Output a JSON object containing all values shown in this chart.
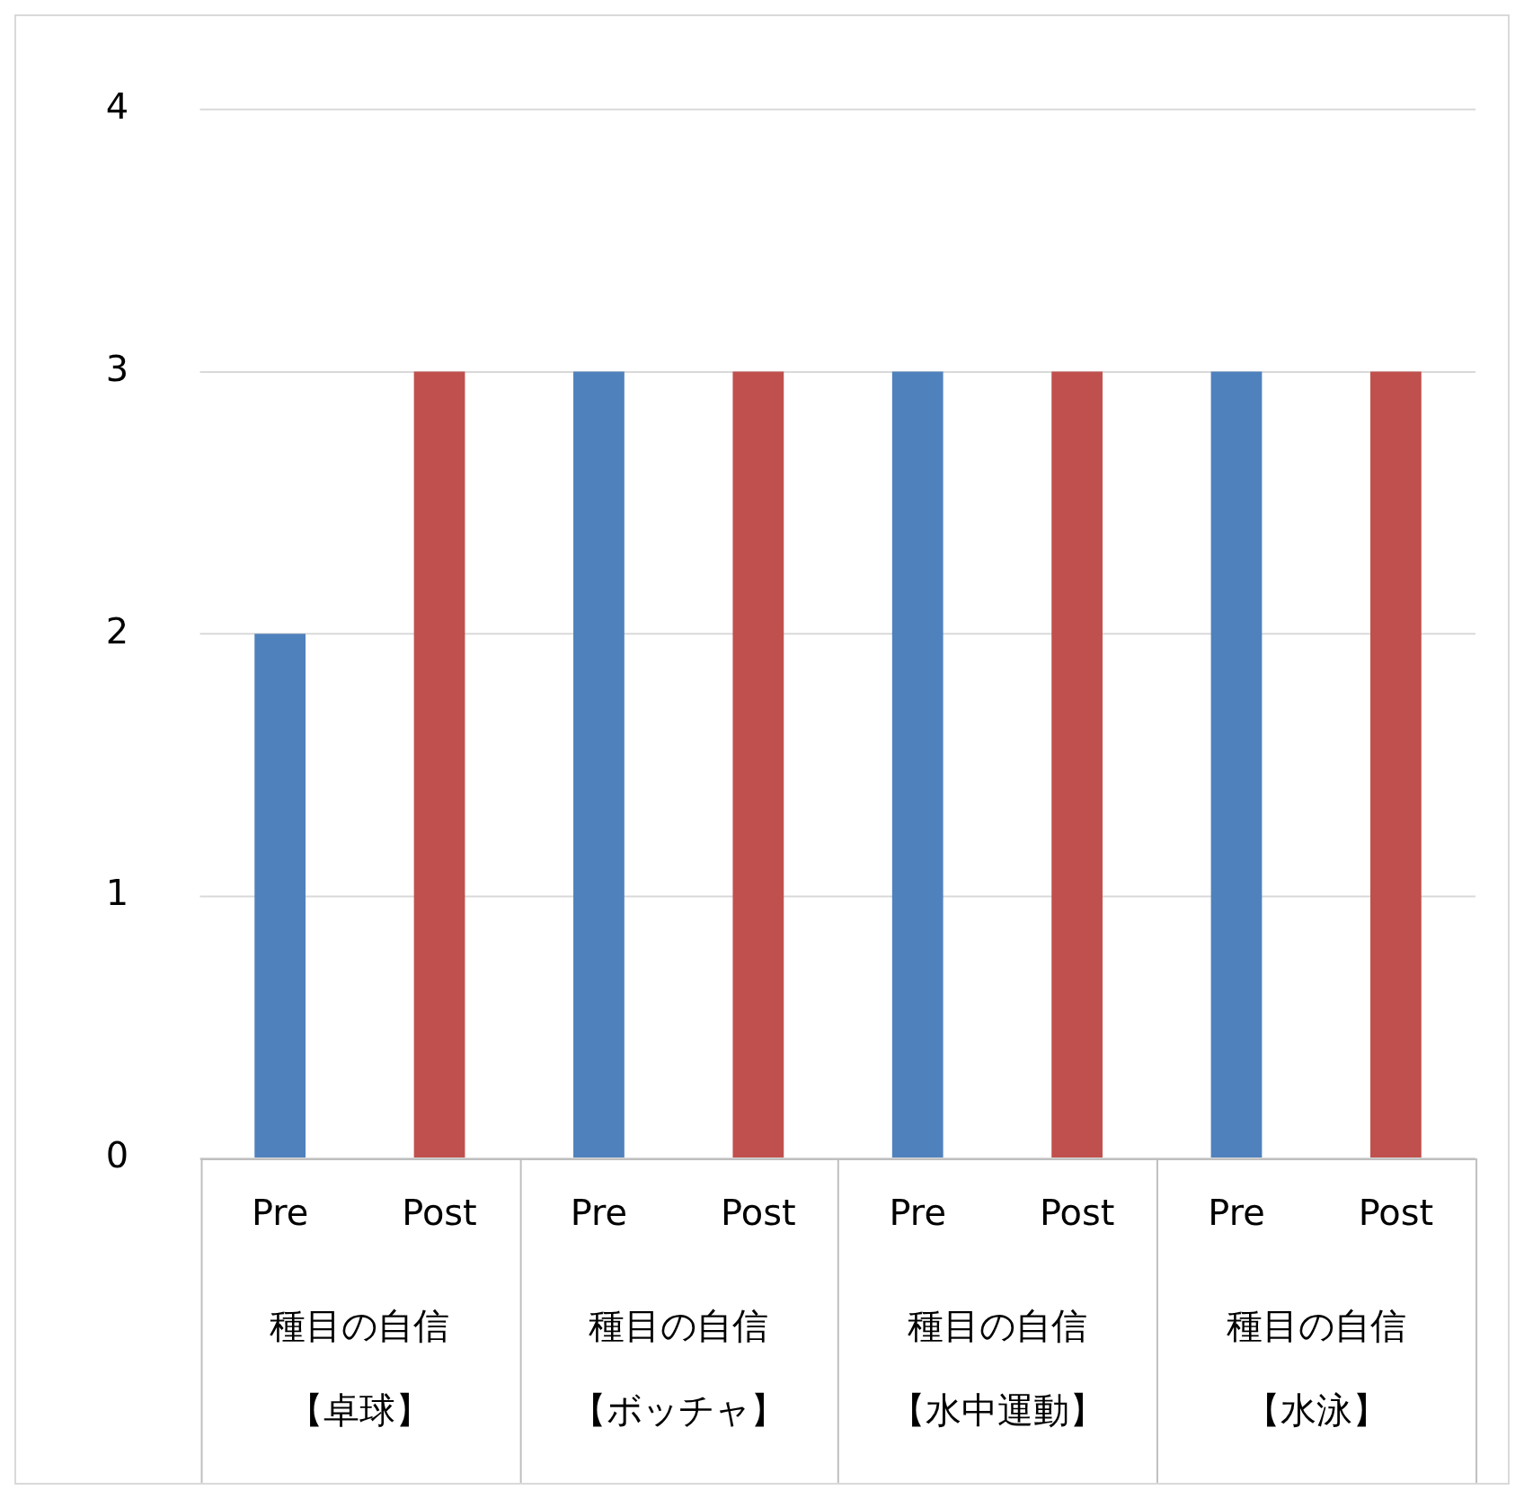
{
  "chart_data": {
    "type": "bar",
    "categories": [
      "Pre",
      "Post",
      "Pre",
      "Post",
      "Pre",
      "Post",
      "Pre",
      "Post"
    ],
    "values": [
      2,
      3,
      3,
      3,
      3,
      3,
      3,
      3
    ],
    "colors": [
      "#4f81bd",
      "#c0504d",
      "#4f81bd",
      "#c0504d",
      "#4f81bd",
      "#c0504d",
      "#4f81bd",
      "#c0504d"
    ],
    "ylim": [
      0,
      4
    ],
    "yticks": [
      0,
      1,
      2,
      3,
      4
    ],
    "grid": "y",
    "legend": false,
    "annotations": [
      "種目の自信【卓球】",
      "種目の自信【ボッチャ】",
      "種目の自信【水中運動】",
      "種目の自信【水泳】"
    ]
  }
}
